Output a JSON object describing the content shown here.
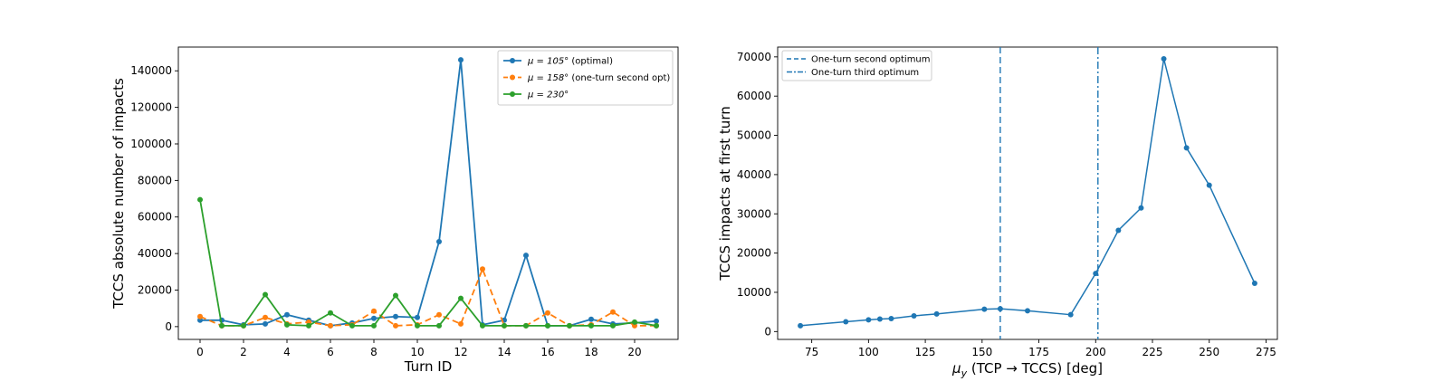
{
  "chart_data": [
    {
      "type": "line",
      "xlabel": "Turn ID",
      "ylabel": "TCCS absolute number of impacts",
      "xlim": [
        -1,
        22
      ],
      "ylim": [
        -7000,
        153000
      ],
      "xticks": [
        0,
        2,
        4,
        6,
        8,
        10,
        12,
        14,
        16,
        18,
        20
      ],
      "yticks": [
        0,
        20000,
        40000,
        60000,
        80000,
        100000,
        120000,
        140000
      ],
      "grid": false,
      "legend_position": "top-right",
      "x": [
        0,
        1,
        2,
        3,
        4,
        5,
        6,
        7,
        8,
        9,
        10,
        11,
        12,
        13,
        14,
        15,
        16,
        17,
        18,
        19,
        20,
        21
      ],
      "series": [
        {
          "name": "μ = 105° (optimal)",
          "legend_main": "μ = 105°",
          "legend_note": " (optimal)",
          "color": "#1f77b4",
          "line_style": "solid",
          "values": [
            3500,
            3500,
            1000,
            1500,
            6500,
            3500,
            500,
            2000,
            4500,
            5500,
            5000,
            46500,
            146000,
            1000,
            3500,
            39000,
            500,
            500,
            4000,
            1500,
            2000,
            3000
          ]
        },
        {
          "name": "μ = 158° (one-turn second opt)",
          "legend_main": "μ = 158°",
          "legend_note": " (one-turn second opt)",
          "color": "#ff7f0e",
          "line_style": "dashed",
          "values": [
            5500,
            500,
            500,
            5000,
            1500,
            2500,
            500,
            1000,
            8500,
            500,
            1000,
            6500,
            1500,
            31500,
            500,
            500,
            7500,
            500,
            1000,
            8000,
            500,
            500
          ]
        },
        {
          "name": "μ = 230°",
          "legend_main": "μ = 230°",
          "legend_note": "",
          "color": "#2ca02c",
          "line_style": "solid",
          "values": [
            69500,
            500,
            500,
            17500,
            1000,
            500,
            7500,
            500,
            500,
            17000,
            500,
            500,
            15500,
            500,
            500,
            500,
            500,
            500,
            500,
            500,
            2500,
            500
          ]
        }
      ]
    },
    {
      "type": "line",
      "xlabel": "μy (TCP → TCCS) [deg]",
      "xlabel_mu": "μ",
      "xlabel_sub": "y",
      "xlabel_rest": " (TCP → TCCS) [deg]",
      "ylabel": "TCCS impacts at first turn",
      "xlim": [
        60,
        280
      ],
      "ylim": [
        -2000,
        72500
      ],
      "xticks": [
        75,
        100,
        125,
        150,
        175,
        200,
        225,
        250,
        275
      ],
      "yticks": [
        0,
        10000,
        20000,
        30000,
        40000,
        50000,
        60000,
        70000
      ],
      "grid": false,
      "legend_position": "top-left",
      "color": "#1f77b4",
      "x": [
        70,
        90,
        100,
        105,
        110,
        120,
        130,
        151,
        158,
        170,
        189,
        200,
        210,
        220,
        230,
        240,
        250,
        270
      ],
      "values": [
        1500,
        2500,
        3000,
        3200,
        3300,
        4000,
        4500,
        5700,
        5800,
        5300,
        4300,
        14800,
        25800,
        31500,
        69500,
        46800,
        37300,
        12300
      ],
      "vlines": [
        {
          "name": "One-turn second optimum",
          "x": 158,
          "line_style": "dashed",
          "color": "#1f77b4"
        },
        {
          "name": "One-turn third optimum",
          "x": 201,
          "line_style": "dashdot",
          "color": "#1f77b4"
        }
      ]
    }
  ]
}
